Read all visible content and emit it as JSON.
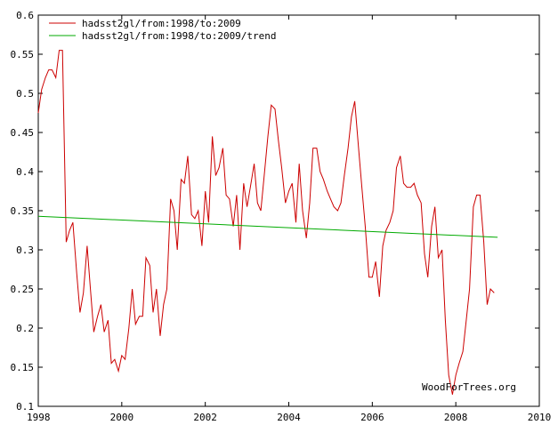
{
  "chart_data": {
    "type": "line",
    "title": "",
    "xlabel": "",
    "ylabel": "",
    "xlim": [
      1998,
      2010
    ],
    "ylim": [
      0.1,
      0.6
    ],
    "grid": false,
    "legend_position": "top-left",
    "x_ticks": [
      "1998",
      "2000",
      "2002",
      "2004",
      "2006",
      "2008",
      "2010"
    ],
    "y_ticks": [
      "0.1",
      "0.15",
      "0.2",
      "0.25",
      "0.3",
      "0.35",
      "0.4",
      "0.45",
      "0.5",
      "0.55",
      "0.6"
    ],
    "annotation": "WoodForTrees.org",
    "series": [
      {
        "name": "hadsst2gl/from:1998/to:2009",
        "color": "#cc0000",
        "x": [
          1998.0,
          1998.08,
          1998.17,
          1998.25,
          1998.33,
          1998.42,
          1998.5,
          1998.58,
          1998.67,
          1998.75,
          1998.83,
          1998.92,
          1999.0,
          1999.08,
          1999.17,
          1999.25,
          1999.33,
          1999.42,
          1999.5,
          1999.58,
          1999.67,
          1999.75,
          1999.83,
          1999.92,
          2000.0,
          2000.08,
          2000.17,
          2000.25,
          2000.33,
          2000.42,
          2000.5,
          2000.58,
          2000.67,
          2000.75,
          2000.83,
          2000.92,
          2001.0,
          2001.08,
          2001.17,
          2001.25,
          2001.33,
          2001.42,
          2001.5,
          2001.58,
          2001.67,
          2001.75,
          2001.83,
          2001.92,
          2002.0,
          2002.08,
          2002.17,
          2002.25,
          2002.33,
          2002.42,
          2002.5,
          2002.58,
          2002.67,
          2002.75,
          2002.83,
          2002.92,
          2003.0,
          2003.08,
          2003.17,
          2003.25,
          2003.33,
          2003.42,
          2003.5,
          2003.58,
          2003.67,
          2003.75,
          2003.83,
          2003.92,
          2004.0,
          2004.08,
          2004.17,
          2004.25,
          2004.33,
          2004.42,
          2004.5,
          2004.58,
          2004.67,
          2004.75,
          2004.83,
          2004.92,
          2005.0,
          2005.08,
          2005.17,
          2005.25,
          2005.33,
          2005.42,
          2005.5,
          2005.58,
          2005.67,
          2005.75,
          2005.83,
          2005.92,
          2006.0,
          2006.08,
          2006.17,
          2006.25,
          2006.33,
          2006.42,
          2006.5,
          2006.58,
          2006.67,
          2006.75,
          2006.83,
          2006.92,
          2007.0,
          2007.08,
          2007.17,
          2007.25,
          2007.33,
          2007.42,
          2007.5,
          2007.58,
          2007.67,
          2007.75,
          2007.83,
          2007.92,
          2008.0,
          2008.08,
          2008.17,
          2008.25,
          2008.33,
          2008.42,
          2008.5,
          2008.58,
          2008.67,
          2008.75,
          2008.83,
          2008.92
        ],
        "values": [
          0.475,
          0.505,
          0.52,
          0.53,
          0.53,
          0.52,
          0.555,
          0.555,
          0.31,
          0.325,
          0.335,
          0.27,
          0.22,
          0.245,
          0.305,
          0.25,
          0.195,
          0.215,
          0.23,
          0.195,
          0.21,
          0.155,
          0.16,
          0.145,
          0.165,
          0.16,
          0.2,
          0.25,
          0.205,
          0.215,
          0.215,
          0.29,
          0.28,
          0.22,
          0.25,
          0.19,
          0.23,
          0.25,
          0.365,
          0.35,
          0.3,
          0.39,
          0.385,
          0.42,
          0.345,
          0.34,
          0.35,
          0.305,
          0.375,
          0.335,
          0.445,
          0.395,
          0.405,
          0.43,
          0.37,
          0.365,
          0.33,
          0.37,
          0.3,
          0.385,
          0.355,
          0.38,
          0.41,
          0.36,
          0.35,
          0.4,
          0.445,
          0.485,
          0.48,
          0.44,
          0.405,
          0.36,
          0.375,
          0.385,
          0.335,
          0.41,
          0.35,
          0.315,
          0.36,
          0.43,
          0.43,
          0.4,
          0.39,
          0.375,
          0.365,
          0.355,
          0.35,
          0.36,
          0.395,
          0.43,
          0.47,
          0.49,
          0.43,
          0.38,
          0.33,
          0.265,
          0.265,
          0.285,
          0.24,
          0.305,
          0.325,
          0.335,
          0.35,
          0.405,
          0.42,
          0.385,
          0.38,
          0.38,
          0.385,
          0.37,
          0.36,
          0.295,
          0.265,
          0.33,
          0.355,
          0.29,
          0.3,
          0.21,
          0.14,
          0.115,
          0.14,
          0.155,
          0.17,
          0.21,
          0.25,
          0.355,
          0.37,
          0.37,
          0.31,
          0.23,
          0.25,
          0.245
        ]
      },
      {
        "name": "hadsst2gl/from:1998/to:2009/trend",
        "color": "#00aa00",
        "x": [
          1998.0,
          2009.0
        ],
        "values": [
          0.343,
          0.316
        ]
      }
    ]
  }
}
